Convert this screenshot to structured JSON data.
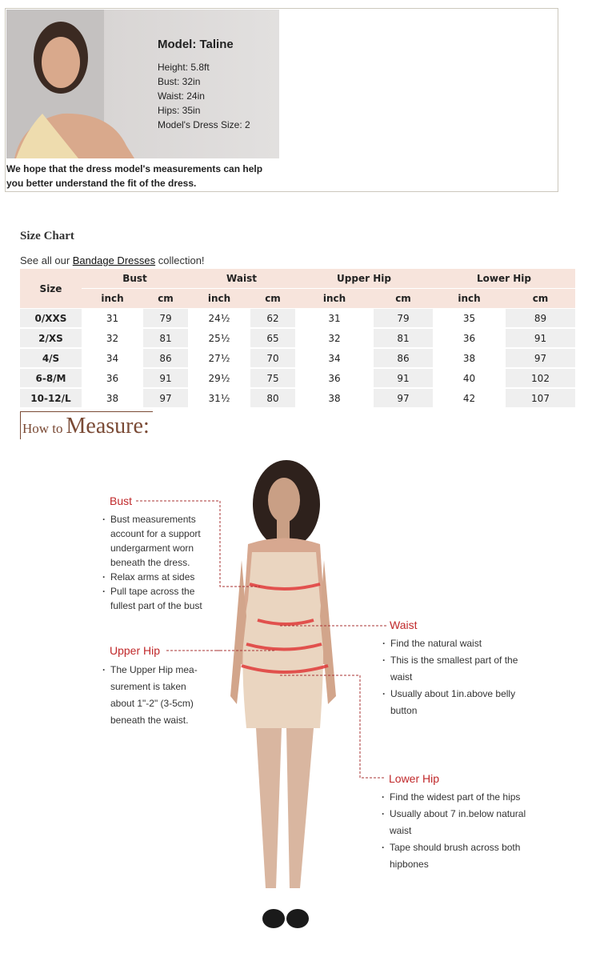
{
  "model": {
    "name": "Model: Taline",
    "stats": [
      "Height: 5.8ft",
      "Bust: 32in",
      "Waist: 24in",
      "Hips: 35in",
      "Model's Dress Size: 2"
    ],
    "caption": [
      "We hope that the dress model's measurements can help",
      "you better understand the fit of the dress."
    ]
  },
  "size_chart": {
    "title": "Size Chart",
    "intro_before": "See all our ",
    "link": "Bandage Dresses",
    "intro_after": " collection!",
    "headers": {
      "size": "Size",
      "groups": [
        "Bust",
        "Waist",
        "Upper Hip",
        "Lower Hip"
      ],
      "units": [
        "inch",
        "cm",
        "inch",
        "cm",
        "inch",
        "cm",
        "inch",
        "cm"
      ]
    },
    "rows": [
      [
        "0/XXS",
        "31",
        "79",
        "24½",
        "62",
        "31",
        "79",
        "35",
        "89"
      ],
      [
        "2/XS",
        "32",
        "81",
        "25½",
        "65",
        "32",
        "81",
        "36",
        "91"
      ],
      [
        "4/S",
        "34",
        "86",
        "27½",
        "70",
        "34",
        "86",
        "38",
        "97"
      ],
      [
        "6-8/M",
        "36",
        "91",
        "29½",
        "75",
        "36",
        "91",
        "40",
        "102"
      ],
      [
        "10-12/L",
        "38",
        "97",
        "31½",
        "80",
        "38",
        "97",
        "42",
        "107"
      ]
    ]
  },
  "how_to": {
    "small": "How to",
    "big": "Measure",
    "bust": {
      "label": "Bust",
      "notes": [
        "Bust measurements account for a support undergarment worn beneath the dress.",
        "Relax arms at sides",
        "Pull tape across the fullest part of the bust"
      ]
    },
    "upper_hip": {
      "label": "Upper Hip",
      "notes": [
        "The Upper Hip mea-surement is taken about 1\"-2\" (3-5cm) beneath the waist."
      ]
    },
    "waist": {
      "label": "Waist",
      "notes": [
        "Find the natural waist",
        "This is the smallest part of the waist",
        "Usually about 1in.above belly button"
      ]
    },
    "lower_hip": {
      "label": "Lower Hip",
      "notes": [
        "Find the widest part of the hips",
        "Usually about 7 in.below natural waist",
        "Tape should brush across both hipbones"
      ]
    },
    "accent": "#c0282a"
  }
}
